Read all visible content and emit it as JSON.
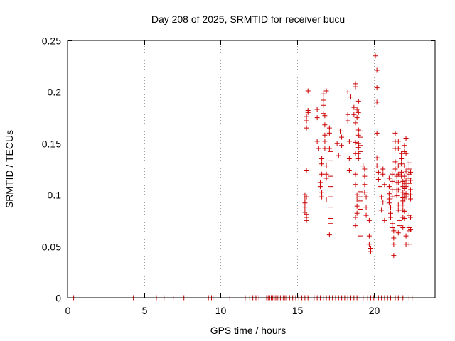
{
  "chart_data": {
    "type": "scatter",
    "title": "Day 208 of 2025, SRMTID for receiver bucu",
    "xlabel": "GPS time / hours",
    "ylabel": "SRMTID / TECUs",
    "xlim": [
      0,
      24
    ],
    "ylim": [
      0,
      0.25
    ],
    "xticks": [
      0,
      5,
      10,
      15,
      20
    ],
    "xtick_labels": [
      "0",
      "5",
      "10",
      "15",
      "20"
    ],
    "yticks": [
      0,
      0.05,
      0.1,
      0.15,
      0.2,
      0.25
    ],
    "ytick_labels": [
      "0",
      "0.05",
      "0.1",
      "0.15",
      "0.2",
      "0.25"
    ],
    "grid": true,
    "marker": "+",
    "color": "#cc0000",
    "points": [
      [
        0.4,
        0
      ],
      [
        4.3,
        0
      ],
      [
        5.8,
        0
      ],
      [
        6.3,
        0
      ],
      [
        6.9,
        0
      ],
      [
        7.6,
        0
      ],
      [
        9.2,
        0
      ],
      [
        9.4,
        0
      ],
      [
        9.5,
        0
      ],
      [
        10.6,
        0
      ],
      [
        11.6,
        0
      ],
      [
        11.9,
        0
      ],
      [
        12.1,
        0
      ],
      [
        12.3,
        0
      ],
      [
        12.5,
        0
      ],
      [
        13.0,
        0
      ],
      [
        13.1,
        0
      ],
      [
        13.2,
        0
      ],
      [
        13.3,
        0
      ],
      [
        13.4,
        0
      ],
      [
        13.5,
        0
      ],
      [
        13.6,
        0
      ],
      [
        13.7,
        0
      ],
      [
        13.8,
        0
      ],
      [
        13.9,
        0
      ],
      [
        14.0,
        0
      ],
      [
        14.1,
        0
      ],
      [
        14.2,
        0
      ],
      [
        14.3,
        0
      ],
      [
        14.5,
        0
      ],
      [
        14.7,
        0
      ],
      [
        14.9,
        0
      ],
      [
        15.1,
        0
      ],
      [
        15.3,
        0
      ],
      [
        15.5,
        0
      ],
      [
        15.7,
        0
      ],
      [
        15.9,
        0
      ],
      [
        16.1,
        0
      ],
      [
        16.3,
        0
      ],
      [
        16.5,
        0
      ],
      [
        16.7,
        0
      ],
      [
        16.9,
        0
      ],
      [
        17.1,
        0
      ],
      [
        17.3,
        0
      ],
      [
        17.5,
        0
      ],
      [
        17.7,
        0
      ],
      [
        17.9,
        0
      ],
      [
        18.1,
        0
      ],
      [
        18.3,
        0
      ],
      [
        18.5,
        0
      ],
      [
        18.7,
        0
      ],
      [
        18.9,
        0
      ],
      [
        19.1,
        0
      ],
      [
        19.3,
        0
      ],
      [
        19.6,
        0
      ],
      [
        19.8,
        0
      ],
      [
        20.0,
        0
      ],
      [
        20.3,
        0
      ],
      [
        20.5,
        0
      ],
      [
        20.7,
        0
      ],
      [
        20.9,
        0
      ],
      [
        21.1,
        0
      ],
      [
        21.4,
        0
      ],
      [
        21.6,
        0
      ],
      [
        21.9,
        0
      ],
      [
        22.3,
        0
      ],
      [
        22.5,
        0
      ],
      [
        15.5,
        0.1
      ],
      [
        15.5,
        0.095
      ],
      [
        15.5,
        0.088
      ],
      [
        15.5,
        0.083
      ],
      [
        15.6,
        0.081
      ],
      [
        15.6,
        0.078
      ],
      [
        15.6,
        0.075
      ],
      [
        15.5,
        0.092
      ],
      [
        15.6,
        0.098
      ],
      [
        15.6,
        0.124
      ],
      [
        15.6,
        0.172
      ],
      [
        15.6,
        0.176
      ],
      [
        15.7,
        0.18
      ],
      [
        15.7,
        0.182
      ],
      [
        15.7,
        0.201
      ],
      [
        15.6,
        0.165
      ],
      [
        16.3,
        0.175
      ],
      [
        16.3,
        0.183
      ],
      [
        16.3,
        0.152
      ],
      [
        16.4,
        0.145
      ],
      [
        16.5,
        0.112
      ],
      [
        16.5,
        0.108
      ],
      [
        16.6,
        0.12
      ],
      [
        16.6,
        0.13
      ],
      [
        16.6,
        0.135
      ],
      [
        16.6,
        0.102
      ],
      [
        16.6,
        0.098
      ],
      [
        16.7,
        0.198
      ],
      [
        16.7,
        0.192
      ],
      [
        16.7,
        0.187
      ],
      [
        16.7,
        0.179
      ],
      [
        16.8,
        0.177
      ],
      [
        16.8,
        0.168
      ],
      [
        16.8,
        0.158
      ],
      [
        16.8,
        0.152
      ],
      [
        16.8,
        0.145
      ],
      [
        16.9,
        0.128
      ],
      [
        16.9,
        0.12
      ],
      [
        16.9,
        0.116
      ],
      [
        16.9,
        0.095
      ],
      [
        16.9,
        0.201
      ],
      [
        17.1,
        0.165
      ],
      [
        17.1,
        0.16
      ],
      [
        17.1,
        0.145
      ],
      [
        17.2,
        0.142
      ],
      [
        17.2,
        0.133
      ],
      [
        17.2,
        0.118
      ],
      [
        17.2,
        0.108
      ],
      [
        17.2,
        0.098
      ],
      [
        17.2,
        0.088
      ],
      [
        17.2,
        0.077
      ],
      [
        17.2,
        0.072
      ],
      [
        17.1,
        0.061
      ],
      [
        17.6,
        0.15
      ],
      [
        17.7,
        0.138
      ],
      [
        17.8,
        0.162
      ],
      [
        17.9,
        0.156
      ],
      [
        17.9,
        0.148
      ],
      [
        18.3,
        0.172
      ],
      [
        18.3,
        0.178
      ],
      [
        18.3,
        0.2
      ],
      [
        18.4,
        0.152
      ],
      [
        18.4,
        0.135
      ],
      [
        18.4,
        0.124
      ],
      [
        18.5,
        0.195
      ],
      [
        18.7,
        0.185
      ],
      [
        18.7,
        0.178
      ],
      [
        18.8,
        0.17
      ],
      [
        18.8,
        0.151
      ],
      [
        18.8,
        0.14
      ],
      [
        18.8,
        0.12
      ],
      [
        18.8,
        0.11
      ],
      [
        18.8,
        0.208
      ],
      [
        18.8,
        0.205
      ],
      [
        18.9,
        0.183
      ],
      [
        18.9,
        0.175
      ],
      [
        18.9,
        0.1
      ],
      [
        18.9,
        0.095
      ],
      [
        18.9,
        0.089
      ],
      [
        18.9,
        0.082
      ],
      [
        18.8,
        0.078
      ],
      [
        18.8,
        0.07
      ],
      [
        19.0,
        0.191
      ],
      [
        19.0,
        0.18
      ],
      [
        19.0,
        0.163
      ],
      [
        19.0,
        0.158
      ],
      [
        19.0,
        0.15
      ],
      [
        19.0,
        0.146
      ],
      [
        19.0,
        0.14
      ],
      [
        19.0,
        0.135
      ],
      [
        19.1,
        0.162
      ],
      [
        19.1,
        0.156
      ],
      [
        19.1,
        0.148
      ],
      [
        19.1,
        0.142
      ],
      [
        19.1,
        0.103
      ],
      [
        19.1,
        0.098
      ],
      [
        19.1,
        0.094
      ],
      [
        19.1,
        0.086
      ],
      [
        19.1,
        0.06
      ],
      [
        19.3,
        0.128
      ],
      [
        19.4,
        0.125
      ],
      [
        19.4,
        0.118
      ],
      [
        19.4,
        0.11
      ],
      [
        19.4,
        0.102
      ],
      [
        19.5,
        0.098
      ],
      [
        19.5,
        0.088
      ],
      [
        19.5,
        0.08
      ],
      [
        19.7,
        0.075
      ],
      [
        19.7,
        0.06
      ],
      [
        19.7,
        0.052
      ],
      [
        19.8,
        0.045
      ],
      [
        19.8,
        0.048
      ],
      [
        20.1,
        0.235
      ],
      [
        20.2,
        0.221
      ],
      [
        20.2,
        0.204
      ],
      [
        20.2,
        0.19
      ],
      [
        20.2,
        0.16
      ],
      [
        20.2,
        0.136
      ],
      [
        20.2,
        0.128
      ],
      [
        20.3,
        0.122
      ],
      [
        20.3,
        0.115
      ],
      [
        20.4,
        0.108
      ],
      [
        20.5,
        0.085
      ],
      [
        20.5,
        0.098
      ],
      [
        20.6,
        0.093
      ],
      [
        20.6,
        0.125
      ],
      [
        20.6,
        0.12
      ],
      [
        20.7,
        0.11
      ],
      [
        20.7,
        0.075
      ],
      [
        21.0,
        0.116
      ],
      [
        21.0,
        0.108
      ],
      [
        21.0,
        0.101
      ],
      [
        21.0,
        0.096
      ],
      [
        21.0,
        0.092
      ],
      [
        21.1,
        0.088
      ],
      [
        21.1,
        0.082
      ],
      [
        21.1,
        0.078
      ],
      [
        21.2,
        0.12
      ],
      [
        21.2,
        0.113
      ],
      [
        21.2,
        0.105
      ],
      [
        21.2,
        0.098
      ],
      [
        21.2,
        0.072
      ],
      [
        21.2,
        0.068
      ],
      [
        21.3,
        0.065
      ],
      [
        21.3,
        0.058
      ],
      [
        21.3,
        0.052
      ],
      [
        21.3,
        0.041
      ],
      [
        21.4,
        0.16
      ],
      [
        21.4,
        0.152
      ],
      [
        21.4,
        0.145
      ],
      [
        21.4,
        0.132
      ],
      [
        21.4,
        0.125
      ],
      [
        21.5,
        0.118
      ],
      [
        21.5,
        0.112
      ],
      [
        21.5,
        0.105
      ],
      [
        21.5,
        0.099
      ],
      [
        21.6,
        0.152
      ],
      [
        21.6,
        0.145
      ],
      [
        21.6,
        0.128
      ],
      [
        21.6,
        0.12
      ],
      [
        21.6,
        0.112
      ],
      [
        21.6,
        0.105
      ],
      [
        21.6,
        0.09
      ],
      [
        21.6,
        0.085
      ],
      [
        21.6,
        0.063
      ],
      [
        21.7,
        0.075
      ],
      [
        21.7,
        0.07
      ],
      [
        21.8,
        0.14
      ],
      [
        21.8,
        0.135
      ],
      [
        21.8,
        0.13
      ],
      [
        21.8,
        0.122
      ],
      [
        21.8,
        0.118
      ],
      [
        21.9,
        0.113
      ],
      [
        21.9,
        0.108
      ],
      [
        21.9,
        0.102
      ],
      [
        21.9,
        0.097
      ],
      [
        21.9,
        0.094
      ],
      [
        21.9,
        0.09
      ],
      [
        21.9,
        0.085
      ],
      [
        21.9,
        0.078
      ],
      [
        21.9,
        0.068
      ],
      [
        22.0,
        0.148
      ],
      [
        22.0,
        0.142
      ],
      [
        22.0,
        0.128
      ],
      [
        22.0,
        0.118
      ],
      [
        22.0,
        0.111
      ],
      [
        22.0,
        0.106
      ],
      [
        22.0,
        0.1
      ],
      [
        22.0,
        0.095
      ],
      [
        22.0,
        0.084
      ],
      [
        22.0,
        0.077
      ],
      [
        22.1,
        0.155
      ],
      [
        22.1,
        0.14
      ],
      [
        22.1,
        0.123
      ],
      [
        22.1,
        0.114
      ],
      [
        22.1,
        0.108
      ],
      [
        22.1,
        0.101
      ],
      [
        22.1,
        0.098
      ],
      [
        22.1,
        0.06
      ],
      [
        22.1,
        0.052
      ],
      [
        22.3,
        0.131
      ],
      [
        22.3,
        0.125
      ],
      [
        22.3,
        0.12
      ],
      [
        22.3,
        0.116
      ],
      [
        22.3,
        0.111
      ],
      [
        22.3,
        0.1
      ],
      [
        22.3,
        0.08
      ],
      [
        22.3,
        0.068
      ],
      [
        22.3,
        0.065
      ],
      [
        22.3,
        0.052
      ],
      [
        22.4,
        0.122
      ],
      [
        22.4,
        0.114
      ],
      [
        22.4,
        0.105
      ],
      [
        22.4,
        0.1
      ],
      [
        22.4,
        0.096
      ],
      [
        22.4,
        0.078
      ],
      [
        22.4,
        0.066
      ]
    ]
  }
}
